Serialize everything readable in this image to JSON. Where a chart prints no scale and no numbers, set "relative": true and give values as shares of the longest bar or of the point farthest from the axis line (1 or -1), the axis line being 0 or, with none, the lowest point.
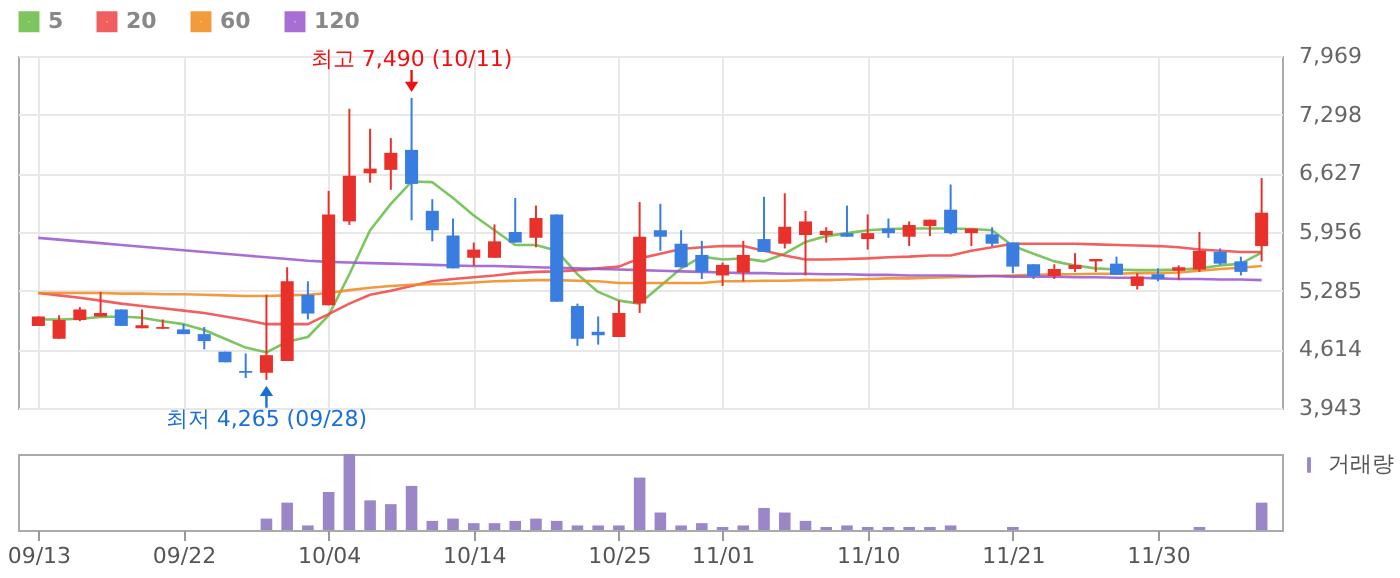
{
  "chart_data": [
    {
      "type": "candlestick",
      "categories": [
        null,
        null,
        null,
        null,
        null,
        null,
        null,
        null,
        null,
        null,
        null,
        null,
        null,
        null,
        null,
        null,
        null,
        null,
        null,
        null,
        null,
        null,
        null,
        null,
        null,
        null,
        null,
        null,
        null,
        null,
        null,
        null,
        null,
        null,
        null,
        null,
        null,
        null,
        null,
        null,
        null,
        null,
        null,
        null,
        null,
        null,
        null,
        null,
        null,
        null,
        null,
        null,
        null,
        null,
        null,
        null,
        null,
        null,
        null,
        null
      ],
      "ohlc": [
        [
          4882,
          4990,
          4882,
          4990
        ],
        [
          4735,
          5003,
          4735,
          4949
        ],
        [
          4949,
          5097,
          4936,
          5070
        ],
        [
          4990,
          5271,
          4990,
          5030
        ],
        [
          5070,
          5070,
          4882,
          4882
        ],
        [
          4855,
          5070,
          4855,
          4889
        ],
        [
          4849,
          4956,
          4849,
          4869
        ],
        [
          4842,
          4902,
          4788,
          4788
        ],
        [
          4788,
          4869,
          4614,
          4708
        ],
        [
          4587,
          4587,
          4466,
          4466
        ],
        [
          4366,
          4567,
          4285,
          4346
        ],
        [
          4346,
          5238,
          4265,
          4547
        ],
        [
          4480,
          5553,
          4480,
          5392
        ],
        [
          5238,
          5392,
          4956,
          5023
        ],
        [
          5117,
          6426,
          5117,
          6157
        ],
        [
          6077,
          7365,
          6037,
          6600
        ],
        [
          6627,
          7137,
          6520,
          6681
        ],
        [
          6667,
          7030,
          6439,
          6862
        ],
        [
          6895,
          7490,
          6090,
          6506
        ],
        [
          6198,
          6332,
          5849,
          5976
        ],
        [
          5916,
          6110,
          5540,
          5540
        ],
        [
          5661,
          5835,
          5574,
          5755
        ],
        [
          5661,
          6043,
          5661,
          5849
        ],
        [
          5956,
          6345,
          5835,
          5835
        ],
        [
          5889,
          6258,
          5781,
          6117
        ],
        [
          6157,
          6157,
          5157,
          5157
        ],
        [
          5110,
          5137,
          4654,
          4735
        ],
        [
          4815,
          4990,
          4668,
          4775
        ],
        [
          4755,
          5171,
          4755,
          5030
        ],
        [
          5137,
          6298,
          5030,
          5902
        ],
        [
          5976,
          6278,
          5741,
          5902
        ],
        [
          5822,
          5976,
          5553,
          5553
        ],
        [
          5694,
          5855,
          5419,
          5500
        ],
        [
          5459,
          5607,
          5339,
          5580
        ],
        [
          5493,
          5855,
          5392,
          5694
        ],
        [
          5875,
          6359,
          5728,
          5728
        ],
        [
          5822,
          6399,
          5768,
          6016
        ],
        [
          5922,
          6198,
          5459,
          6077
        ],
        [
          5922,
          6010,
          5835,
          5969
        ],
        [
          5943,
          6258,
          5902,
          5902
        ],
        [
          5875,
          6157,
          5755,
          5943
        ],
        [
          5996,
          6110,
          5889,
          5943
        ],
        [
          5902,
          6077,
          5795,
          6036
        ],
        [
          6023,
          6097,
          5909,
          6097
        ],
        [
          6211,
          6499,
          5929,
          5943
        ],
        [
          5943,
          5996,
          5795,
          5996
        ],
        [
          5929,
          6010,
          5795,
          5822
        ],
        [
          5835,
          5835,
          5486,
          5560
        ],
        [
          5587,
          5587,
          5419,
          5453
        ],
        [
          5453,
          5587,
          5419,
          5533
        ],
        [
          5533,
          5714,
          5500,
          5580
        ],
        [
          5620,
          5647,
          5500,
          5647
        ],
        [
          5594,
          5674,
          5466,
          5466
        ],
        [
          5339,
          5486,
          5298,
          5446
        ],
        [
          5473,
          5540,
          5392,
          5419
        ],
        [
          5513,
          5574,
          5406,
          5553
        ],
        [
          5527,
          5956,
          5500,
          5741
        ],
        [
          5728,
          5768,
          5580,
          5594
        ],
        [
          5620,
          5674,
          5459,
          5500
        ],
        [
          5795,
          6573,
          5620,
          6177
        ]
      ],
      "colors": [
        "#e8312a",
        "#e8312a",
        "#e8312a",
        "#e8312a",
        "#3a7de0",
        "#e8312a",
        "#e8312a",
        "#3a7de0",
        "#3a7de0",
        "#3a7de0",
        "#3a7de0",
        "#e8312a",
        "#e8312a",
        "#3a7de0",
        "#e8312a",
        "#e8312a",
        "#e8312a",
        "#e8312a",
        "#3a7de0",
        "#3a7de0",
        "#3a7de0",
        "#e8312a",
        "#e8312a",
        "#3a7de0",
        "#e8312a",
        "#3a7de0",
        "#3a7de0",
        "#3a7de0",
        "#e8312a",
        "#e8312a",
        "#3a7de0",
        "#3a7de0",
        "#3a7de0",
        "#e8312a",
        "#e8312a",
        "#3a7de0",
        "#e8312a",
        "#e8312a",
        "#e8312a",
        "#3a7de0",
        "#e8312a",
        "#3a7de0",
        "#e8312a",
        "#e8312a",
        "#3a7de0",
        "#e8312a",
        "#3a7de0",
        "#3a7de0",
        "#3a7de0",
        "#e8312a",
        "#e8312a",
        "#e8312a",
        "#3a7de0",
        "#e8312a",
        "#3a7de0",
        "#e8312a",
        "#e8312a",
        "#3a7de0",
        "#3a7de0",
        "#e8312a"
      ],
      "series": [
        {
          "name": "5",
          "type": "line",
          "color": "#66bb44",
          "values": [
            4956,
            4956,
            4963,
            4983,
            4990,
            4976,
            4936,
            4902,
            4835,
            4735,
            4634,
            4580,
            4701,
            4755,
            5003,
            5473,
            5976,
            6278,
            6533,
            6526,
            6345,
            6144,
            5976,
            5808,
            5808,
            5741,
            5473,
            5271,
            5171,
            5137,
            5339,
            5540,
            5674,
            5641,
            5654,
            5620,
            5708,
            5842,
            5909,
            5943,
            5976,
            5990,
            5996,
            5996,
            5996,
            5990,
            5976,
            5795,
            5708,
            5620,
            5573,
            5540,
            5527,
            5520,
            5520,
            5527,
            5540,
            5573,
            5594,
            5721
          ]
        },
        {
          "name": "20",
          "type": "line",
          "color": "#ee4444",
          "values": [
            5258,
            5231,
            5204,
            5171,
            5137,
            5110,
            5083,
            5057,
            5030,
            4990,
            4949,
            4902,
            4902,
            4902,
            5016,
            5137,
            5238,
            5285,
            5339,
            5392,
            5419,
            5439,
            5459,
            5486,
            5500,
            5506,
            5520,
            5540,
            5560,
            5654,
            5708,
            5762,
            5781,
            5795,
            5795,
            5741,
            5687,
            5641,
            5641,
            5647,
            5654,
            5667,
            5674,
            5687,
            5687,
            5741,
            5781,
            5822,
            5822,
            5822,
            5822,
            5815,
            5808,
            5802,
            5795,
            5781,
            5755,
            5741,
            5728,
            5728
          ]
        },
        {
          "name": "60",
          "type": "line",
          "color": "#f08a1c",
          "values": [
            5258,
            5258,
            5258,
            5258,
            5251,
            5251,
            5244,
            5244,
            5238,
            5231,
            5224,
            5224,
            5231,
            5238,
            5258,
            5291,
            5318,
            5339,
            5352,
            5359,
            5365,
            5379,
            5392,
            5399,
            5406,
            5406,
            5399,
            5392,
            5372,
            5372,
            5372,
            5372,
            5372,
            5392,
            5392,
            5399,
            5399,
            5406,
            5406,
            5412,
            5419,
            5426,
            5426,
            5433,
            5439,
            5446,
            5453,
            5459,
            5466,
            5473,
            5473,
            5479,
            5479,
            5486,
            5486,
            5493,
            5513,
            5533,
            5547,
            5567
          ]
        },
        {
          "name": "120",
          "type": "line",
          "color": "#9955cc",
          "values": [
            5889,
            5869,
            5849,
            5829,
            5808,
            5788,
            5768,
            5748,
            5728,
            5708,
            5687,
            5667,
            5647,
            5627,
            5614,
            5607,
            5600,
            5594,
            5587,
            5580,
            5573,
            5567,
            5567,
            5560,
            5553,
            5547,
            5540,
            5533,
            5527,
            5520,
            5513,
            5506,
            5500,
            5493,
            5486,
            5486,
            5479,
            5479,
            5473,
            5473,
            5466,
            5466,
            5459,
            5459,
            5459,
            5453,
            5453,
            5446,
            5446,
            5446,
            5439,
            5439,
            5433,
            5433,
            5426,
            5419,
            5419,
            5412,
            5412,
            5406
          ]
        }
      ],
      "ylim": [
        3943,
        7969
      ],
      "yticks": [
        {
          "value": 3943,
          "label": "3,943"
        },
        {
          "value": 4614,
          "label": "4,614"
        },
        {
          "value": 5285,
          "label": "5,285"
        },
        {
          "value": 5956,
          "label": "5,956"
        },
        {
          "value": 6627,
          "label": "6,627"
        },
        {
          "value": 7298,
          "label": "7,298"
        },
        {
          "value": 7969,
          "label": "7,969"
        }
      ],
      "grid": true,
      "legend": "top left",
      "tick_labels": "y",
      "annotations": [
        {
          "text": "최고 7,490 (10/11)",
          "y": 7490
        },
        {
          "text": "최저 4,265 (09/28)",
          "y": 4265
        }
      ]
    },
    {
      "type": "bar",
      "categories": [
        "09/13",
        null,
        null,
        null,
        null,
        null,
        null,
        "09/22",
        null,
        null,
        null,
        null,
        null,
        null,
        "10/04",
        null,
        null,
        null,
        null,
        null,
        null,
        "10/14",
        null,
        null,
        null,
        null,
        null,
        null,
        "10/25",
        null,
        null,
        null,
        null,
        "11/01",
        null,
        null,
        null,
        null,
        null,
        null,
        "11/10",
        null,
        null,
        null,
        null,
        null,
        null,
        "11/21",
        null,
        null,
        null,
        null,
        null,
        null,
        "11/30",
        null,
        null,
        null,
        null,
        null
      ],
      "series": [
        {
          "name": "거래량",
          "color": "#9b87c8",
          "values": [
            0,
            0,
            0,
            0,
            0,
            0,
            0,
            0,
            0,
            0,
            0,
            0.15,
            0.36,
            0.06,
            0.5,
            1,
            0.39,
            0.34,
            0.58,
            0.12,
            0.15,
            0.09,
            0.09,
            0.12,
            0.15,
            0.12,
            0.06,
            0.06,
            0.06,
            0.69,
            0.23,
            0.06,
            0.09,
            0.04,
            0.06,
            0.29,
            0.23,
            0.12,
            0.04,
            0.06,
            0.04,
            0.04,
            0.04,
            0.04,
            0.06,
            0,
            0,
            0.04,
            0,
            0,
            0,
            0,
            0,
            0,
            0,
            0,
            0.04,
            0,
            0,
            0.36
          ]
        }
      ],
      "relative": true,
      "legend": "top right",
      "tick_labels": "x"
    }
  ]
}
